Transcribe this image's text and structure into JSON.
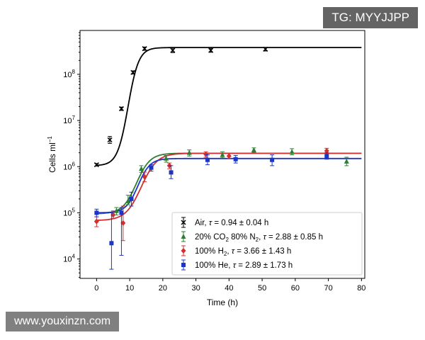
{
  "chart_data": {
    "type": "scatter",
    "title": "",
    "xlabel": "Time (h)",
    "ylabel": "Cells ml",
    "ylabel_superscript": "−1",
    "y_scale": "log",
    "xlim": [
      -5,
      81
    ],
    "ylim_log10": [
      3.58,
      8.95
    ],
    "x_ticks": [
      0,
      10,
      20,
      30,
      40,
      50,
      60,
      70,
      80
    ],
    "y_ticks": [
      {
        "base": "10",
        "exp": "4",
        "value": 10000
      },
      {
        "base": "10",
        "exp": "5",
        "value": 100000
      },
      {
        "base": "10",
        "exp": "6",
        "value": 1000000
      },
      {
        "base": "10",
        "exp": "7",
        "value": 10000000
      },
      {
        "base": "10",
        "exp": "8",
        "value": 100000000
      }
    ],
    "grid": false,
    "legend_position": "lower-right",
    "series": [
      {
        "name": "Air",
        "legend_parts": [
          {
            "t": "Air, "
          },
          {
            "t": "τ",
            "style": "italic"
          },
          {
            "t": " = 0.94 ± 0.04 h"
          }
        ],
        "color": "#000000",
        "marker": "cross",
        "points": [
          {
            "x": 0,
            "y": 1100000,
            "lo": 1030000,
            "hi": 1170000
          },
          {
            "x": 4,
            "y": 3800000,
            "lo": 3200000,
            "hi": 4500000
          },
          {
            "x": 7.5,
            "y": 18000000,
            "lo": 16500000,
            "hi": 19500000
          },
          {
            "x": 11,
            "y": 110000000,
            "lo": 101000000,
            "hi": 119000000
          },
          {
            "x": 14.5,
            "y": 360000000,
            "lo": 330000000,
            "hi": 390000000
          },
          {
            "x": 23,
            "y": 330000000,
            "lo": 295000000,
            "hi": 370000000
          },
          {
            "x": 34.5,
            "y": 330000000,
            "lo": 300000000,
            "hi": 360000000
          },
          {
            "x": 51,
            "y": 350000000,
            "lo": 320000000,
            "hi": 380000000
          }
        ],
        "curve": {
          "low": 1050000,
          "high": 380000000,
          "mid": 9.5,
          "k": 0.62
        }
      },
      {
        "name": "20% CO2 80% N2",
        "legend_parts": [
          {
            "t": "20% CO"
          },
          {
            "t": "2",
            "style": "sub"
          },
          {
            "t": " 80% N"
          },
          {
            "t": "2",
            "style": "sub"
          },
          {
            "t": ", "
          },
          {
            "t": "τ",
            "style": "italic"
          },
          {
            "t": " = 2.88 ± 0.85 h"
          }
        ],
        "color": "#2e7d32",
        "marker": "triangle",
        "points": [
          {
            "x": 6,
            "y": 110000,
            "lo": 90000,
            "hi": 130000
          },
          {
            "x": 9.5,
            "y": 180000,
            "lo": 150000,
            "hi": 240000
          },
          {
            "x": 13.5,
            "y": 900000,
            "lo": 750000,
            "hi": 1050000
          },
          {
            "x": 21,
            "y": 1500000,
            "lo": 1250000,
            "hi": 1750000
          },
          {
            "x": 28,
            "y": 2000000,
            "lo": 1700000,
            "hi": 2300000
          },
          {
            "x": 38,
            "y": 1800000,
            "lo": 1550000,
            "hi": 2100000
          },
          {
            "x": 47.5,
            "y": 2300000,
            "lo": 2050000,
            "hi": 2550000
          },
          {
            "x": 59,
            "y": 2100000,
            "lo": 1800000,
            "hi": 2450000
          },
          {
            "x": 75.5,
            "y": 1300000,
            "lo": 1050000,
            "hi": 1600000
          }
        ],
        "curve": {
          "low": 95000,
          "high": 1950000,
          "mid": 12,
          "k": 0.48
        }
      },
      {
        "name": "100% H2",
        "legend_parts": [
          {
            "t": "100% H"
          },
          {
            "t": "2",
            "style": "sub"
          },
          {
            "t": ", "
          },
          {
            "t": "τ",
            "style": "italic"
          },
          {
            "t": " = 3.66 ± 1.43 h"
          }
        ],
        "color": "#d32f2f",
        "marker": "diamond",
        "points": [
          {
            "x": 0,
            "y": 65000,
            "lo": 50000,
            "hi": 82000
          },
          {
            "x": 5,
            "y": 90000,
            "lo": 75000,
            "hi": 110000
          },
          {
            "x": 8,
            "y": 60000,
            "lo": 25000,
            "hi": 140000
          },
          {
            "x": 14.5,
            "y": 600000,
            "lo": 470000,
            "hi": 760000
          },
          {
            "x": 22,
            "y": 1050000,
            "lo": 900000,
            "hi": 1200000
          },
          {
            "x": 33,
            "y": 1850000,
            "lo": 1600000,
            "hi": 2100000
          },
          {
            "x": 40,
            "y": 1700000,
            "lo": 1500000,
            "hi": 1950000
          },
          {
            "x": 69.5,
            "y": 2200000,
            "lo": 1950000,
            "hi": 2500000
          }
        ],
        "curve": {
          "low": 68000,
          "high": 1950000,
          "mid": 13.5,
          "k": 0.42
        }
      },
      {
        "name": "100% He",
        "legend_parts": [
          {
            "t": "100% He, "
          },
          {
            "t": "τ",
            "style": "italic"
          },
          {
            "t": " = 2.89 ± 1.73 h"
          }
        ],
        "color": "#1a35c8",
        "marker": "square",
        "points": [
          {
            "x": 0,
            "y": 100000,
            "lo": 82000,
            "hi": 120000
          },
          {
            "x": 4.5,
            "y": 22000,
            "lo": 6000,
            "hi": 100000
          },
          {
            "x": 7.5,
            "y": 100000,
            "lo": 12000,
            "hi": 130000
          },
          {
            "x": 10.5,
            "y": 200000,
            "lo": 140000,
            "hi": 280000
          },
          {
            "x": 16.5,
            "y": 950000,
            "lo": 800000,
            "hi": 1100000
          },
          {
            "x": 22.5,
            "y": 750000,
            "lo": 550000,
            "hi": 1050000
          },
          {
            "x": 33.5,
            "y": 1400000,
            "lo": 1100000,
            "hi": 1800000
          },
          {
            "x": 42,
            "y": 1450000,
            "lo": 1200000,
            "hi": 1750000
          },
          {
            "x": 53,
            "y": 1400000,
            "lo": 1050000,
            "hi": 1800000
          },
          {
            "x": 69.5,
            "y": 1700000,
            "lo": 1450000,
            "hi": 2000000
          }
        ],
        "curve": {
          "low": 100000,
          "high": 1500000,
          "mid": 12.5,
          "k": 0.55
        }
      }
    ]
  },
  "watermarks": {
    "top": "TG: MYYJJPP",
    "bottom": "www.youxinzn.com"
  }
}
